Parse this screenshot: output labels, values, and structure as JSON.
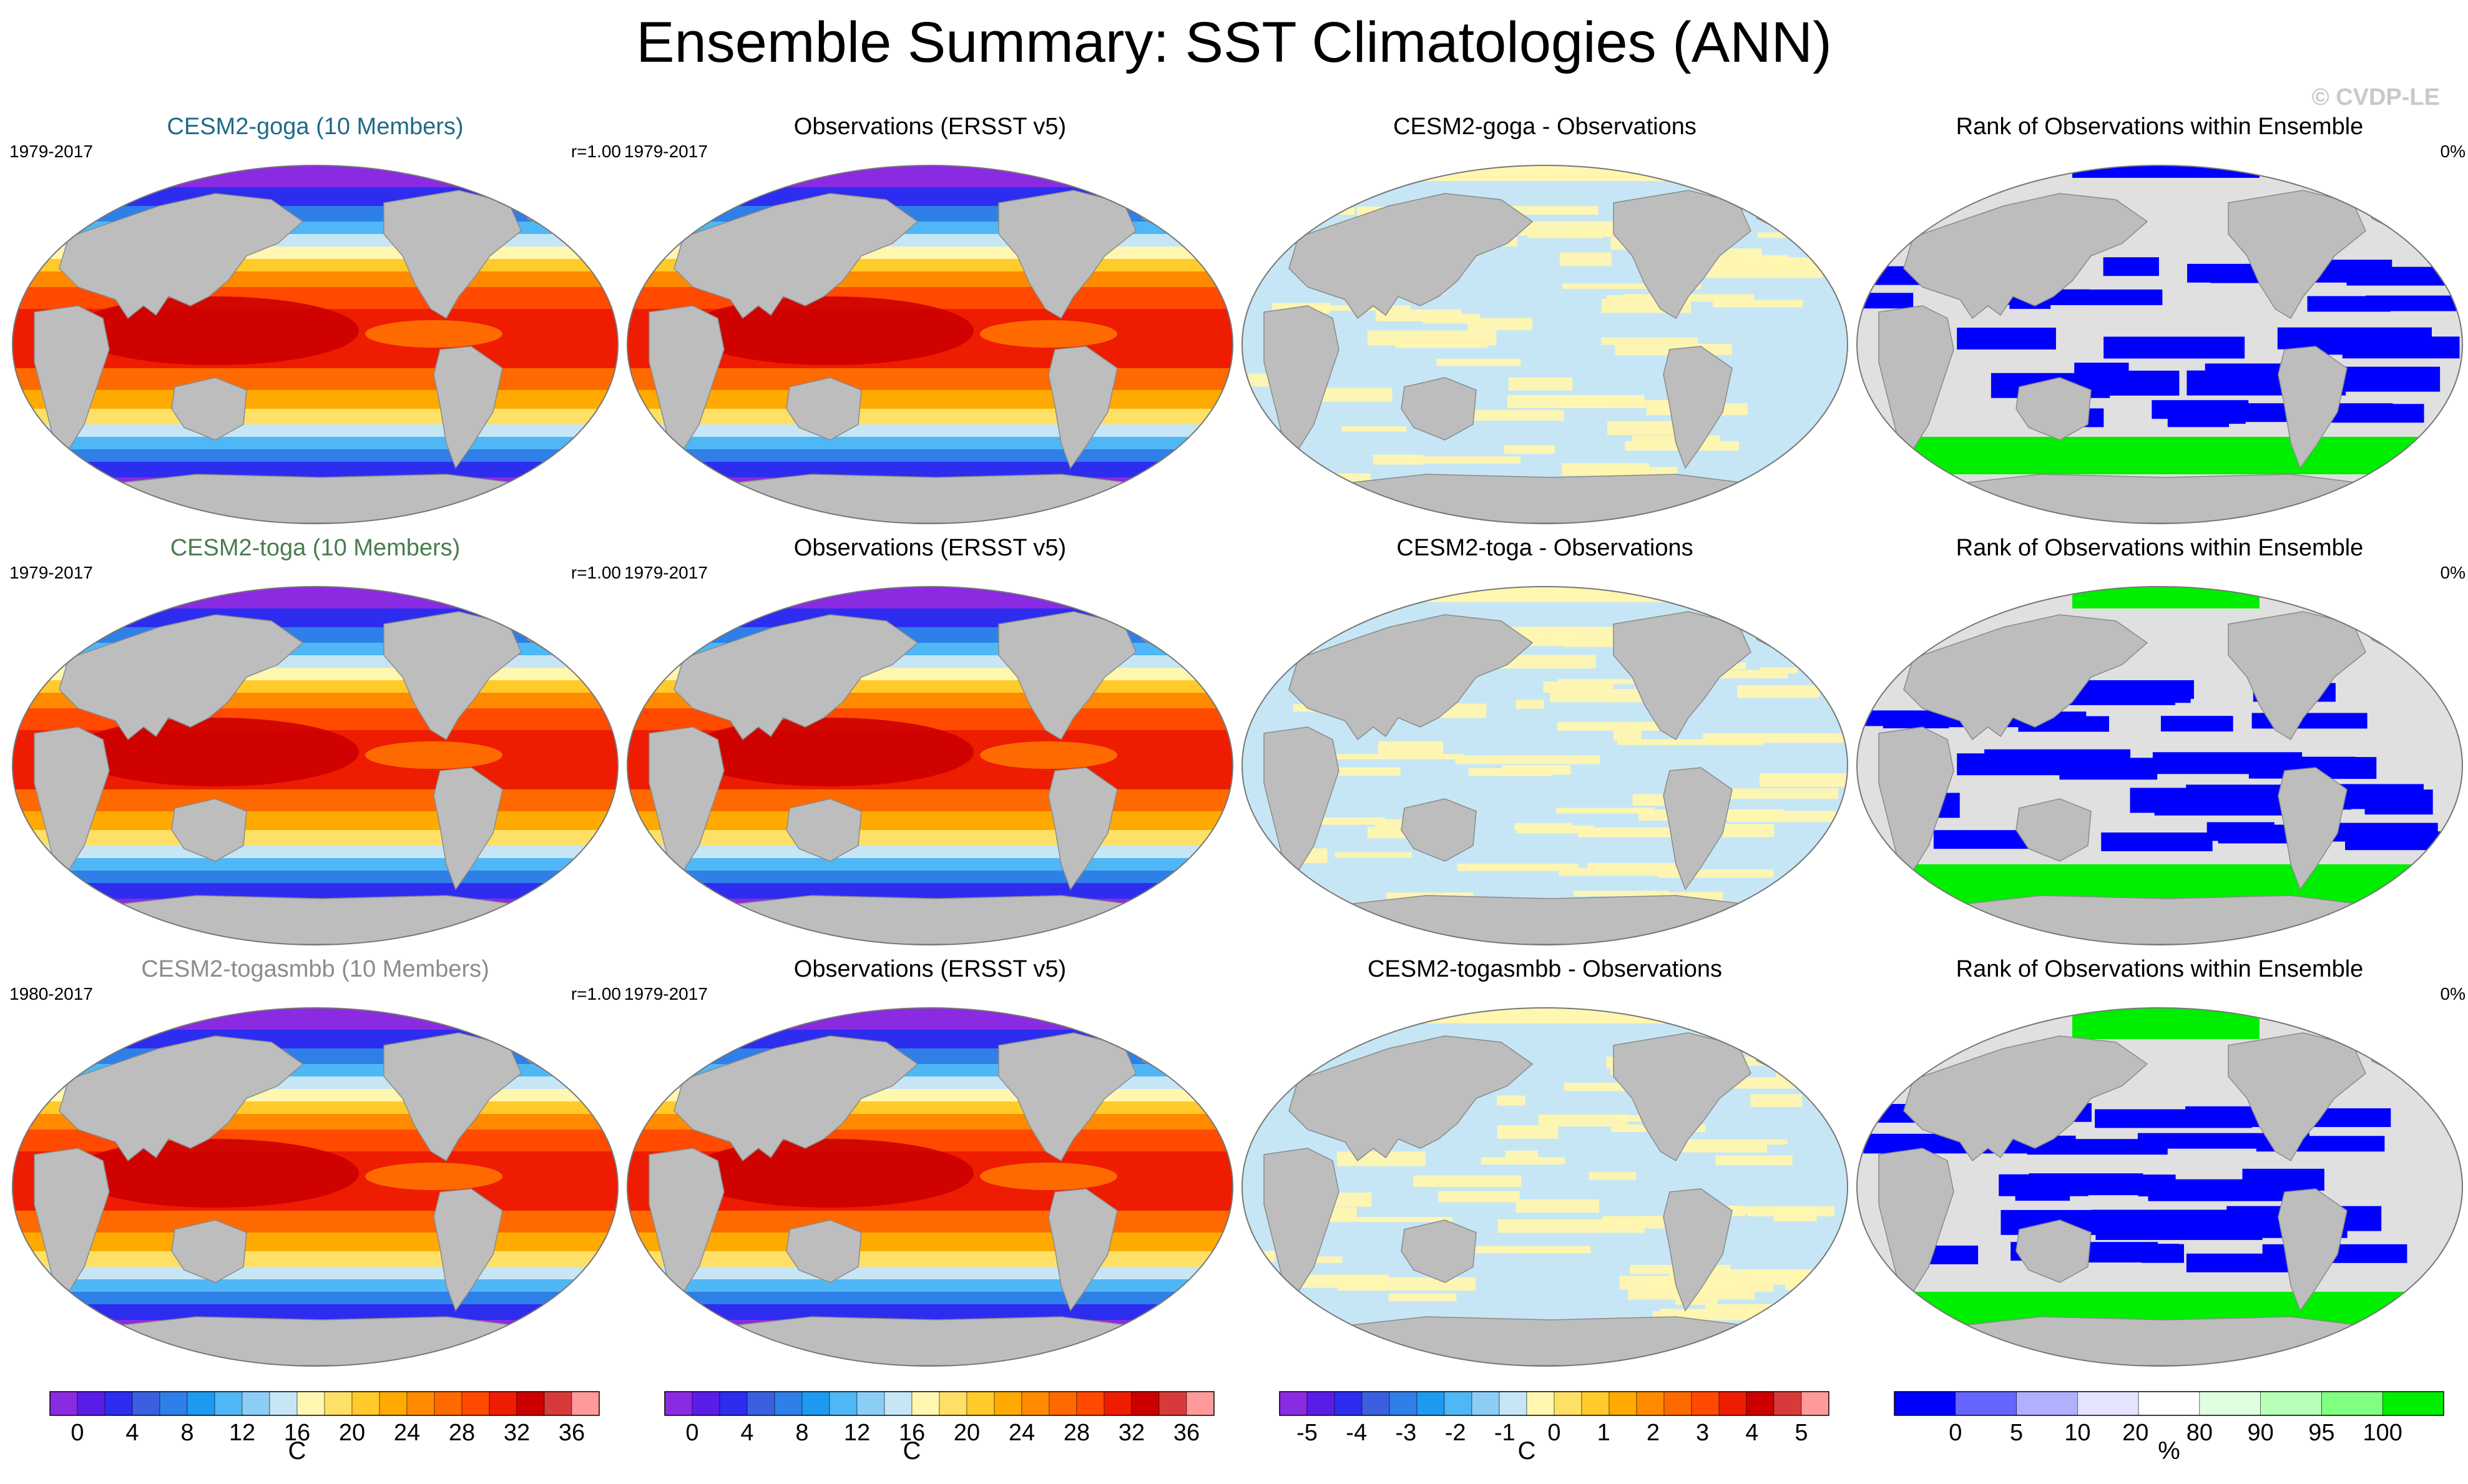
{
  "title": "Ensemble Summary: SST Climatologies (ANN)",
  "watermark": "© CVDP-LE",
  "colors": {
    "model_goga": "#1f6b87",
    "model_toga": "#4a7c4e",
    "model_togasmbb": "#8c8c8c",
    "land": "#bdbdbd",
    "sst_scale": [
      "#8a2be2",
      "#5a1de8",
      "#2d2df0",
      "#3a60e0",
      "#2f7fe8",
      "#1e9af0",
      "#4fb7f5",
      "#8ccdf5",
      "#c6e6f5",
      "#fff6b0",
      "#ffe066",
      "#ffca2a",
      "#ffaa00",
      "#ff8a00",
      "#ff6a00",
      "#ff4a00",
      "#ee1c00",
      "#cc0000",
      "#d83a3a",
      "#ff9a9a"
    ],
    "diff_scale": [
      "#8a2be2",
      "#5a1de8",
      "#2d2df0",
      "#3a60e0",
      "#2f7fe8",
      "#1e9af0",
      "#4fb7f5",
      "#8ccdf5",
      "#c6e6f5",
      "#fff6b0",
      "#ffe066",
      "#ffca2a",
      "#ffaa00",
      "#ff8a00",
      "#ff6a00",
      "#ff4a00",
      "#ee1c00",
      "#cc0000",
      "#d83a3a",
      "#ff9a9a"
    ],
    "rank_scale": [
      "#0000ff",
      "#6666ff",
      "#b0b0ff",
      "#e4e4ff",
      "#ffffff",
      "#e0ffe0",
      "#b8ffb8",
      "#80ff80",
      "#00ee00"
    ]
  },
  "rows": [
    {
      "model": {
        "title": "CESM2-goga (10 Members)",
        "years": "1979-2017",
        "r": "r=1.00",
        "color_key": "model_goga"
      },
      "obs": {
        "title": "Observations (ERSST v5)",
        "years": "1979-2017"
      },
      "diff": {
        "title": "CESM2-goga - Observations"
      },
      "rank": {
        "title": "Rank of Observations within Ensemble",
        "pct": "0%"
      }
    },
    {
      "model": {
        "title": "CESM2-toga (10 Members)",
        "years": "1979-2017",
        "r": "r=1.00",
        "color_key": "model_toga"
      },
      "obs": {
        "title": "Observations (ERSST v5)",
        "years": "1979-2017"
      },
      "diff": {
        "title": "CESM2-toga - Observations"
      },
      "rank": {
        "title": "Rank of Observations within Ensemble",
        "pct": "0%"
      }
    },
    {
      "model": {
        "title": "CESM2-togasmbb (10 Members)",
        "years": "1980-2017",
        "r": "r=1.00",
        "color_key": "model_togasmbb"
      },
      "obs": {
        "title": "Observations (ERSST v5)",
        "years": "1979-2017"
      },
      "diff": {
        "title": "CESM2-togasmbb - Observations"
      },
      "rank": {
        "title": "Rank of Observations within Ensemble",
        "pct": "0%"
      }
    }
  ],
  "chart_data": [
    {
      "type": "heatmap",
      "title": "SST climatology colorbar",
      "ticks": [
        "0",
        "4",
        "8",
        "12",
        "16",
        "20",
        "24",
        "28",
        "32",
        "36"
      ],
      "unit": "C",
      "range": [
        -2,
        38
      ],
      "n_colors": 20
    },
    {
      "type": "heatmap",
      "title": "difference colorbar",
      "ticks": [
        "-5",
        "-4",
        "-3",
        "-2",
        "-1",
        "0",
        "1",
        "2",
        "3",
        "4",
        "5"
      ],
      "unit": "C",
      "range": [
        -5.5,
        5.5
      ],
      "n_colors": 20
    },
    {
      "type": "heatmap",
      "title": "rank colorbar",
      "ticks": [
        "0",
        "5",
        "10",
        "20",
        "80",
        "90",
        "95",
        "100"
      ],
      "unit": "%",
      "n_colors": 9
    }
  ]
}
